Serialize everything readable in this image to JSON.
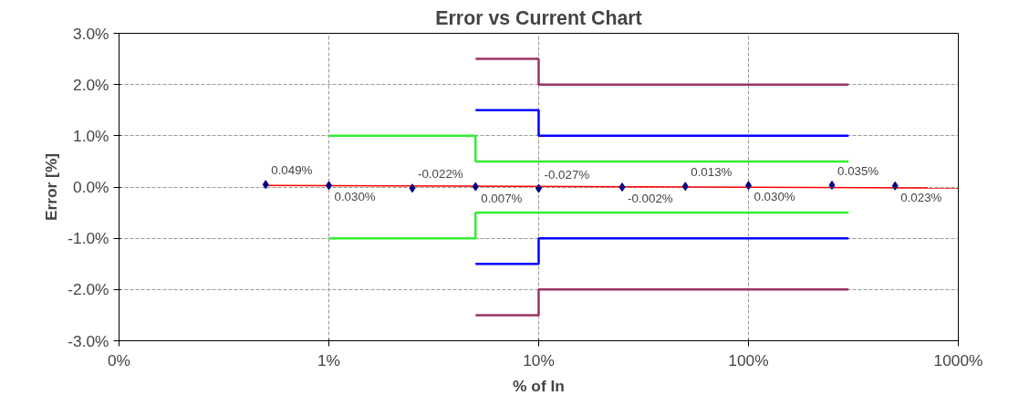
{
  "chart_data": {
    "type": "scatter",
    "title": "Error vs Current Chart",
    "xlabel": "% of In",
    "ylabel": "Error [%]",
    "log": "x",
    "grid": true,
    "xlim": [
      0.1,
      1000
    ],
    "xticks": [
      {
        "value": 0.1,
        "label": "0%"
      },
      {
        "value": 1,
        "label": "1%"
      },
      {
        "value": 10,
        "label": "10%"
      },
      {
        "value": 100,
        "label": "100%"
      },
      {
        "value": 1000,
        "label": "1000%"
      }
    ],
    "ylim": [
      -3,
      3
    ],
    "yticks": [
      {
        "value": -3,
        "label": "-3.0%"
      },
      {
        "value": -2,
        "label": "-2.0%"
      },
      {
        "value": -1,
        "label": "-1.0%"
      },
      {
        "value": 0,
        "label": "0.0%"
      },
      {
        "value": 1,
        "label": "1.0%"
      },
      {
        "value": 2,
        "label": "2.0%"
      },
      {
        "value": 3,
        "label": "3.0%"
      }
    ],
    "series": [
      {
        "type": "step",
        "color": "#33ee33",
        "x": [
          1,
          5,
          300
        ],
        "values": [
          1,
          0.5,
          0.5
        ]
      },
      {
        "type": "step",
        "color": "#33ee33",
        "x": [
          1,
          5,
          300
        ],
        "values": [
          -1,
          -0.5,
          -0.5
        ]
      },
      {
        "type": "step",
        "color": "#0000ff",
        "x": [
          5,
          10,
          300
        ],
        "values": [
          1.5,
          1,
          1
        ]
      },
      {
        "type": "step",
        "color": "#0000ff",
        "x": [
          5,
          10,
          300
        ],
        "values": [
          -1.5,
          -1,
          -1
        ]
      },
      {
        "type": "step",
        "color": "#993366",
        "x": [
          5,
          10,
          300
        ],
        "values": [
          2.5,
          2,
          2
        ]
      },
      {
        "type": "step",
        "color": "#993366",
        "x": [
          5,
          10,
          300
        ],
        "values": [
          -2.5,
          -2,
          -2
        ]
      },
      {
        "type": "line",
        "color": "#ff0000",
        "x": [
          0.5,
          1000
        ],
        "values": [
          0.03,
          -0.02
        ]
      },
      {
        "color": "#000080",
        "marker": "diamond",
        "x": [
          0.5,
          1,
          2.5,
          5,
          10,
          25,
          50,
          100,
          250,
          500
        ],
        "values": [
          0.049,
          0.03,
          -0.022,
          0.007,
          -0.027,
          -0.002,
          0.013,
          0.03,
          0.035,
          0.023
        ],
        "value_labels": [
          "0.049%",
          "0.030%",
          "-0.022%",
          "0.007%",
          "-0.027%",
          "-0.002%",
          "0.013%",
          "0.030%",
          "0.035%",
          "0.023%"
        ]
      }
    ]
  }
}
